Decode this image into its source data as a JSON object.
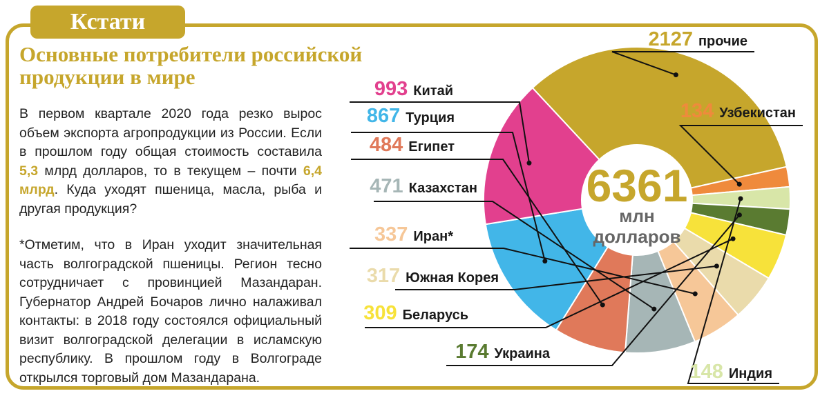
{
  "header": {
    "tab_label": "Кстати",
    "title_line1": "Основные потребители российской",
    "title_line2": "продукции в мире"
  },
  "intro": {
    "part1": "В первом квартале 2020 года резко вырос объем экспорта агропродукции из России. Если в прошлом году общая стоимость составила ",
    "hl1": "5,3",
    "part2": " млрд долларов, то в текущем – почти ",
    "hl2": "6,4 млрд",
    "part3": ". Куда уходят пшеница, масла, рыба и другая продукция?"
  },
  "note": "*Отметим, что в Иран уходит значительная часть волгоградской пшеницы. Регион тесно сотрудничает с провинцией Мазандаран. Губернатор Андрей Бочаров лично налаживал контакты: в 2018 году состоялся официальный визит волгоградской делегации в исламскую республику. В прошлом году в Волгограде открылся торговый дом Мазандарана.",
  "colors": {
    "accent": "#c6a62c",
    "frame": "#c6a62c"
  },
  "chart_data": {
    "type": "pie",
    "variant": "donut",
    "unit": "млн долларов",
    "total": {
      "value": "6361",
      "unit_line1": "млн",
      "unit_line2": "долларов"
    },
    "slices": [
      {
        "label": "прочие",
        "value": 2127,
        "color": "#c6a62c"
      },
      {
        "label": "Узбекистан",
        "value": 134,
        "color": "#ef8a3c"
      },
      {
        "label": "Индия",
        "value": 148,
        "color": "#d8e6a8"
      },
      {
        "label": "Украина",
        "value": 174,
        "color": "#5a7b31"
      },
      {
        "label": "Беларусь",
        "value": 309,
        "color": "#f7e23a"
      },
      {
        "label": "Южная Корея",
        "value": 317,
        "color": "#eadbab"
      },
      {
        "label": "Иран*",
        "value": 337,
        "color": "#f6c798"
      },
      {
        "label": "Казахстан",
        "value": 471,
        "color": "#a6b6b6"
      },
      {
        "label": "Египет",
        "value": 484,
        "color": "#e0795a"
      },
      {
        "label": "Турция",
        "value": 867,
        "color": "#42b6e8"
      },
      {
        "label": "Китай",
        "value": 993,
        "color": "#e2408e"
      }
    ]
  }
}
